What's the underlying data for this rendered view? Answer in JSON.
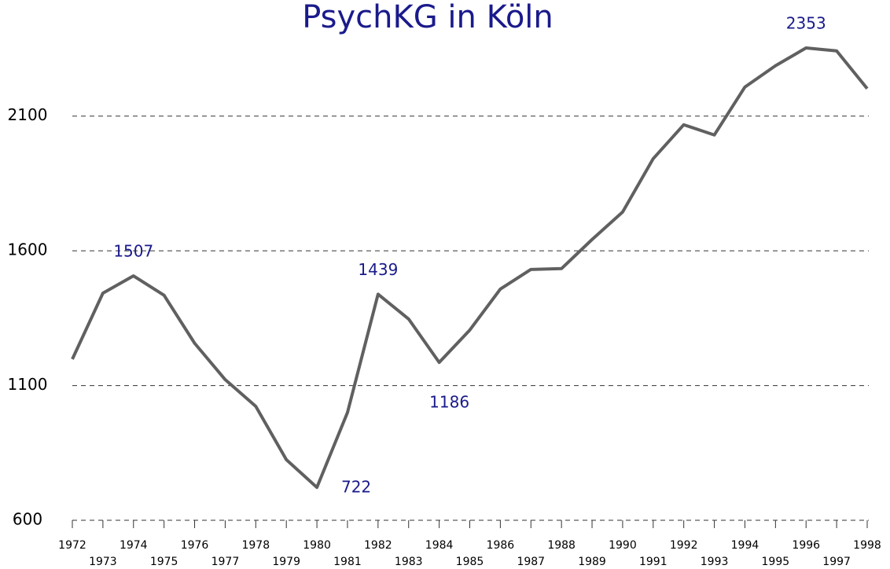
{
  "chart_data": {
    "type": "line",
    "title": "PsychKG in Köln",
    "categories": [
      "1972",
      "1973",
      "1974",
      "1975",
      "1976",
      "1977",
      "1978",
      "1979",
      "1980",
      "1981",
      "1982",
      "1983",
      "1984",
      "1985",
      "1986",
      "1987",
      "1988",
      "1989",
      "1990",
      "1991",
      "1992",
      "1993",
      "1994",
      "1995",
      "1996",
      "1997",
      "1998"
    ],
    "series": [
      {
        "color": "#606060",
        "values": [
          1198,
          1443,
          1507,
          1435,
          1257,
          1122,
          1023,
          825,
          722,
          1000,
          1439,
          1347,
          1186,
          1306,
          1458,
          1531,
          1534,
          1642,
          1744,
          1942,
          2068,
          2030,
          2208,
          2287,
          2353,
          2342,
          2202
        ]
      }
    ],
    "labeled_points": [
      2,
      8,
      10,
      12,
      24
    ],
    "ylim": [
      600,
      2353
    ],
    "yticks": [
      600,
      1100,
      1600,
      2100
    ],
    "grid": true
  }
}
